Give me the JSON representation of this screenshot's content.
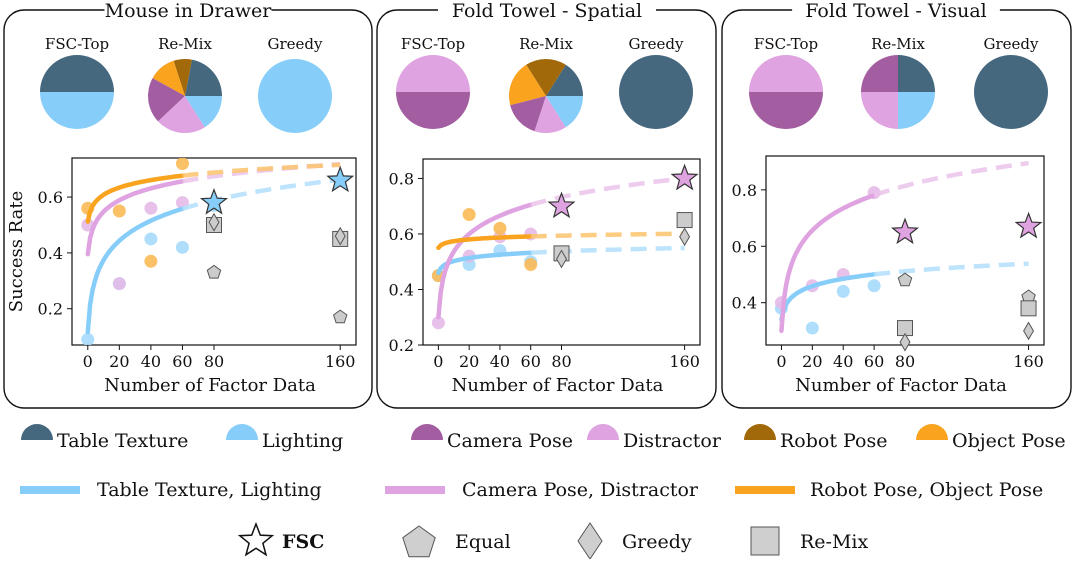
{
  "colors": {
    "table_texture": "#46687f",
    "lighting": "#87cdf9",
    "camera_pose": "#a35ea1",
    "distractor": "#dea3e0",
    "robot_pose": "#a2690a",
    "object_pose": "#f9a31f",
    "marker_gray": "#cccccc"
  },
  "chart_data": [
    {
      "type": "scatter",
      "title": "Mouse in Drawer",
      "xlabel": "Number of Factor Data",
      "ylabel": "Success Rate",
      "xticks": [
        0,
        20,
        40,
        60,
        80,
        160
      ],
      "yticks": [
        0.2,
        0.4,
        0.6
      ],
      "xlim": [
        -10,
        170
      ],
      "ylim": [
        0.07,
        0.74
      ],
      "pies": [
        {
          "label": "FSC-Top",
          "slices": [
            {
              "factor": "table_texture",
              "value": 50
            },
            {
              "factor": "lighting",
              "value": 50
            }
          ]
        },
        {
          "label": "Re-Mix",
          "slices": [
            {
              "factor": "table_texture",
              "value": 22
            },
            {
              "factor": "robot_pose",
              "value": 8
            },
            {
              "factor": "object_pose",
              "value": 12
            },
            {
              "factor": "camera_pose",
              "value": 20
            },
            {
              "factor": "distractor",
              "value": 22
            },
            {
              "factor": "lighting",
              "value": 16
            }
          ]
        },
        {
          "label": "Greedy",
          "slices": [
            {
              "factor": "lighting",
              "value": 100
            }
          ]
        }
      ],
      "series": [
        {
          "factor": "table_texture_lighting",
          "color": "lighting",
          "points": [
            [
              0,
              0.09
            ],
            [
              20,
              0.29
            ],
            [
              40,
              0.45
            ],
            [
              60,
              0.42
            ],
            [
              80,
              0.57
            ]
          ]
        },
        {
          "factor": "camera_pose_distractor",
          "color": "distractor",
          "points": [
            [
              0,
              0.5
            ],
            [
              20,
              0.29
            ],
            [
              40,
              0.56
            ],
            [
              60,
              0.58
            ]
          ]
        },
        {
          "factor": "robot_pose_object_pose",
          "color": "object_pose",
          "points": [
            [
              0,
              0.56
            ],
            [
              20,
              0.55
            ],
            [
              40,
              0.37
            ],
            [
              60,
              0.72
            ]
          ]
        }
      ],
      "fits": [
        {
          "color": "lighting",
          "a": 0.1166,
          "b": 0.1074
        },
        {
          "color": "distractor",
          "a": 0.3953,
          "b": 0.0635
        },
        {
          "color": "object_pose",
          "a": 0.5122,
          "b": 0.04
        }
      ],
      "markers": [
        {
          "shape": "star",
          "x": 80,
          "y": 0.58,
          "color": "lighting"
        },
        {
          "shape": "star",
          "x": 160,
          "y": 0.66,
          "color": "lighting"
        },
        {
          "shape": "square",
          "x": 80,
          "y": 0.5
        },
        {
          "shape": "diamond",
          "x": 80,
          "y": 0.51
        },
        {
          "shape": "pentagon",
          "x": 80,
          "y": 0.33
        },
        {
          "shape": "square",
          "x": 160,
          "y": 0.45
        },
        {
          "shape": "diamond",
          "x": 160,
          "y": 0.46
        },
        {
          "shape": "pentagon",
          "x": 160,
          "y": 0.17
        }
      ]
    },
    {
      "type": "scatter",
      "title": "Fold Towel - Spatial",
      "xlabel": "Number of Factor Data",
      "ylabel": "",
      "xticks": [
        0,
        20,
        40,
        60,
        80,
        160
      ],
      "yticks": [
        0.2,
        0.4,
        0.6,
        0.8
      ],
      "xlim": [
        -10,
        170
      ],
      "ylim": [
        0.2,
        0.87
      ],
      "pies": [
        {
          "label": "FSC-Top",
          "slices": [
            {
              "factor": "distractor",
              "value": 50
            },
            {
              "factor": "camera_pose",
              "value": 50
            }
          ]
        },
        {
          "label": "Re-Mix",
          "slices": [
            {
              "factor": "table_texture",
              "value": 16
            },
            {
              "factor": "robot_pose",
              "value": 18
            },
            {
              "factor": "object_pose",
              "value": 20
            },
            {
              "factor": "camera_pose",
              "value": 16
            },
            {
              "factor": "distractor",
              "value": 14
            },
            {
              "factor": "lighting",
              "value": 16
            }
          ]
        },
        {
          "label": "Greedy",
          "slices": [
            {
              "factor": "table_texture",
              "value": 100
            }
          ]
        }
      ],
      "series": [
        {
          "factor": "table_texture_lighting",
          "color": "lighting",
          "points": [
            [
              0,
              0.45
            ],
            [
              20,
              0.49
            ],
            [
              40,
              0.54
            ],
            [
              60,
              0.5
            ]
          ]
        },
        {
          "factor": "camera_pose_distractor",
          "color": "distractor",
          "points": [
            [
              0,
              0.28
            ],
            [
              20,
              0.52
            ],
            [
              40,
              0.59
            ],
            [
              60,
              0.6
            ]
          ]
        },
        {
          "factor": "robot_pose_object_pose",
          "color": "object_pose",
          "points": [
            [
              0,
              0.45
            ],
            [
              20,
              0.67
            ],
            [
              40,
              0.62
            ],
            [
              60,
              0.49
            ]
          ]
        }
      ],
      "fits": [
        {
          "color": "lighting",
          "a": 0.46,
          "b": 0.0176
        },
        {
          "color": "distractor",
          "a": 0.3,
          "b": 0.0985
        },
        {
          "color": "object_pose",
          "a": 0.55,
          "b": 0.01
        }
      ],
      "markers": [
        {
          "shape": "star",
          "x": 80,
          "y": 0.7,
          "color": "distractor"
        },
        {
          "shape": "star",
          "x": 160,
          "y": 0.8,
          "color": "distractor"
        },
        {
          "shape": "square",
          "x": 80,
          "y": 0.53
        },
        {
          "shape": "diamond",
          "x": 80,
          "y": 0.51
        },
        {
          "shape": "square",
          "x": 160,
          "y": 0.65
        },
        {
          "shape": "diamond",
          "x": 160,
          "y": 0.59
        }
      ]
    },
    {
      "type": "scatter",
      "title": "Fold Towel - Visual",
      "xlabel": "Number of Factor Data",
      "ylabel": "",
      "xticks": [
        0,
        20,
        40,
        60,
        80,
        160
      ],
      "yticks": [
        0.4,
        0.6,
        0.8
      ],
      "xlim": [
        -10,
        170
      ],
      "ylim": [
        0.25,
        0.92
      ],
      "pies": [
        {
          "label": "FSC-Top",
          "slices": [
            {
              "factor": "distractor",
              "value": 50
            },
            {
              "factor": "camera_pose",
              "value": 50
            }
          ]
        },
        {
          "label": "Re-Mix",
          "slices": [
            {
              "factor": "table_texture",
              "value": 25
            },
            {
              "factor": "camera_pose",
              "value": 25
            },
            {
              "factor": "distractor",
              "value": 25
            },
            {
              "factor": "lighting",
              "value": 25
            }
          ]
        },
        {
          "label": "Greedy",
          "slices": [
            {
              "factor": "table_texture",
              "value": 100
            }
          ]
        }
      ],
      "series": [
        {
          "factor": "table_texture_lighting",
          "color": "lighting",
          "points": [
            [
              0,
              0.38
            ],
            [
              20,
              0.31
            ],
            [
              40,
              0.44
            ],
            [
              60,
              0.46
            ]
          ]
        },
        {
          "factor": "camera_pose_distractor",
          "color": "distractor",
          "points": [
            [
              0,
              0.4
            ],
            [
              20,
              0.46
            ],
            [
              40,
              0.5
            ],
            [
              60,
              0.79
            ]
          ]
        }
      ],
      "fits": [
        {
          "color": "lighting",
          "a": 0.34,
          "b": 0.039
        },
        {
          "color": "distractor",
          "a": 0.3,
          "b": 0.117
        }
      ],
      "markers": [
        {
          "shape": "star",
          "x": 80,
          "y": 0.65,
          "color": "distractor"
        },
        {
          "shape": "star",
          "x": 160,
          "y": 0.67,
          "color": "distractor"
        },
        {
          "shape": "pentagon",
          "x": 80,
          "y": 0.48
        },
        {
          "shape": "square",
          "x": 80,
          "y": 0.31
        },
        {
          "shape": "diamond",
          "x": 80,
          "y": 0.26
        },
        {
          "shape": "pentagon",
          "x": 160,
          "y": 0.42
        },
        {
          "shape": "square",
          "x": 160,
          "y": 0.38
        },
        {
          "shape": "diamond",
          "x": 160,
          "y": 0.3
        }
      ]
    }
  ],
  "legend": {
    "pie_entries": [
      {
        "label": "Table Texture",
        "color": "table_texture"
      },
      {
        "label": "Lighting",
        "color": "lighting"
      },
      {
        "label": "Camera Pose",
        "color": "camera_pose"
      },
      {
        "label": "Distractor",
        "color": "distractor"
      },
      {
        "label": "Robot Pose",
        "color": "robot_pose"
      },
      {
        "label": "Object Pose",
        "color": "object_pose"
      }
    ],
    "line_entries": [
      {
        "label": "Table Texture, Lighting",
        "color": "lighting"
      },
      {
        "label": "Camera Pose, Distractor",
        "color": "distractor"
      },
      {
        "label": "Robot Pose, Object Pose",
        "color": "object_pose"
      }
    ],
    "marker_entries": [
      {
        "label": "FSC",
        "shape": "star",
        "bold": true
      },
      {
        "label": "Equal",
        "shape": "pentagon",
        "bold": false
      },
      {
        "label": "Greedy",
        "shape": "diamond",
        "bold": false
      },
      {
        "label": "Re-Mix",
        "shape": "square",
        "bold": false
      }
    ]
  }
}
